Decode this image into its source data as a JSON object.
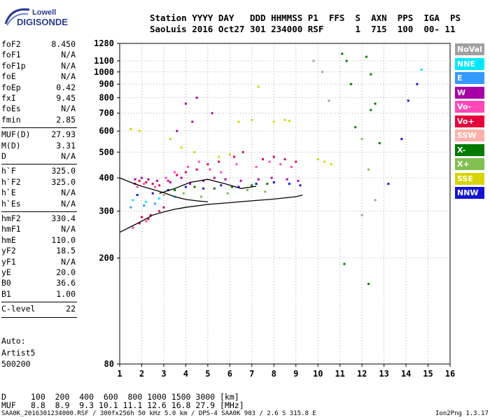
{
  "logo": {
    "line1": "Lowell",
    "line2": "DIGISONDE"
  },
  "header": {
    "line1": "Station YYYY DAY   DDD HHMMSS P1  FFS  S  AXN  PPS  IGA  PS",
    "line2": "SaoLuis 2016 Oct27 301 234000 RSF      1  715  100  00- 11"
  },
  "params": {
    "group1": [
      {
        "name": "foF2",
        "value": "8.450"
      },
      {
        "name": "foF1",
        "value": "N/A"
      },
      {
        "name": "foF1p",
        "value": "N/A"
      },
      {
        "name": "foE",
        "value": "N/A"
      },
      {
        "name": "foEp",
        "value": "0.42"
      },
      {
        "name": "fxI",
        "value": "9.45"
      },
      {
        "name": "foEs",
        "value": "N/A"
      },
      {
        "name": "fmin",
        "value": "2.85"
      }
    ],
    "group2": [
      {
        "name": "MUF(D)",
        "value": "27.93"
      },
      {
        "name": "M(D)",
        "value": "3.31"
      },
      {
        "name": "D",
        "value": "N/A"
      }
    ],
    "group3": [
      {
        "name": "h`F",
        "value": "325.0"
      },
      {
        "name": "h`F2",
        "value": "325.0"
      },
      {
        "name": "h`E",
        "value": "N/A"
      },
      {
        "name": "h`Es",
        "value": "N/A"
      }
    ],
    "group4": [
      {
        "name": "hmF2",
        "value": "330.4"
      },
      {
        "name": "hmF1",
        "value": "N/A"
      },
      {
        "name": "hmE",
        "value": "110.0"
      },
      {
        "name": "yF2",
        "value": "18.5"
      },
      {
        "name": "yF1",
        "value": "N/A"
      },
      {
        "name": "yE",
        "value": "20.0"
      },
      {
        "name": "B0",
        "value": "36.6"
      },
      {
        "name": "B1",
        "value": "1.00"
      }
    ],
    "group5": [
      {
        "name": "C-level",
        "value": "22"
      }
    ]
  },
  "notes": [
    "Auto:",
    "Artist5",
    "500200"
  ],
  "legend": [
    {
      "label": "NoVal",
      "color": "#a0a0a0"
    },
    {
      "label": "NNE",
      "color": "#00e8ff"
    },
    {
      "label": "E",
      "color": "#3399ff"
    },
    {
      "label": "W",
      "color": "#a800a8"
    },
    {
      "label": "Vo-",
      "color": "#ff48b8"
    },
    {
      "label": "Vo+",
      "color": "#e8003c"
    },
    {
      "label": "SSW",
      "color": "#ffb0a8"
    },
    {
      "label": "X-",
      "color": "#007a00"
    },
    {
      "label": "X+",
      "color": "#80c050"
    },
    {
      "label": "SSE",
      "color": "#d8d400"
    },
    {
      "label": "NNW",
      "color": "#1414d0"
    }
  ],
  "bottom": {
    "d_label": "D",
    "d_values": "100  200  400  600  800 1000 1500 3000 [km]",
    "muf_label": "MUF",
    "muf_values": "8.8  8.9  9.3 10.1 11.1 12.6 16.8 27.9 [MHz]"
  },
  "footer": {
    "left": "SAA0K_2016301234000.RSF / 300fx256h 50 kHz 5.0 km / DPS-4 SAA0K 903 / 2.6 S 315.8 E",
    "right": "Ion2Png 1.3.17"
  },
  "chart_data": {
    "type": "scatter",
    "xlim": [
      1,
      16
    ],
    "ylim": [
      80,
      1280
    ],
    "y_scale": "log",
    "x_ticks": [
      1,
      2,
      3,
      4,
      5,
      6,
      7,
      8,
      9,
      10,
      11,
      12,
      13,
      14,
      15,
      16
    ],
    "y_ticks": [
      80,
      200,
      300,
      400,
      500,
      600,
      700,
      800,
      900,
      1000,
      1100,
      1280
    ],
    "grid": true,
    "legend_position": "right",
    "series": [
      {
        "name": "Vo+",
        "points": [
          [
            1.7,
            380
          ],
          [
            1.9,
            390
          ],
          [
            2.2,
            385
          ],
          [
            2.5,
            380
          ],
          [
            2.8,
            375
          ],
          [
            3.2,
            390
          ],
          [
            3.6,
            410
          ],
          [
            4.0,
            420
          ],
          [
            4.5,
            430
          ],
          [
            5.0,
            450
          ],
          [
            5.5,
            460
          ],
          [
            6.2,
            480
          ],
          [
            6.6,
            500
          ],
          [
            7.5,
            470
          ],
          [
            8.0,
            480
          ],
          [
            8.5,
            470
          ],
          [
            9.0,
            460
          ],
          [
            2.0,
            285
          ],
          [
            2.4,
            290
          ],
          [
            2.8,
            300
          ],
          [
            1.9,
            270
          ],
          [
            2.3,
            280
          ],
          [
            3.0,
            310
          ]
        ]
      },
      {
        "name": "Vo-",
        "points": [
          [
            1.8,
            370
          ],
          [
            2.1,
            380
          ],
          [
            2.6,
            370
          ],
          [
            3.1,
            400
          ],
          [
            3.5,
            420
          ],
          [
            4.1,
            440
          ],
          [
            4.6,
            460
          ],
          [
            5.1,
            430
          ],
          [
            5.6,
            420
          ],
          [
            6.3,
            450
          ],
          [
            7.2,
            440
          ],
          [
            7.8,
            460
          ],
          [
            8.3,
            450
          ],
          [
            8.8,
            440
          ],
          [
            1.6,
            260
          ],
          [
            2.2,
            275
          ]
        ]
      },
      {
        "name": "W",
        "points": [
          [
            1.7,
            395
          ],
          [
            2.0,
            400
          ],
          [
            2.3,
            395
          ],
          [
            2.7,
            390
          ],
          [
            3.3,
            385
          ],
          [
            3.8,
            400
          ],
          [
            4.2,
            380
          ],
          [
            4.8,
            390
          ],
          [
            5.3,
            400
          ],
          [
            5.8,
            395
          ],
          [
            6.5,
            390
          ],
          [
            7.3,
            395
          ],
          [
            7.9,
            400
          ],
          [
            8.6,
            395
          ],
          [
            9.1,
            390
          ],
          [
            3.6,
            600
          ],
          [
            4.3,
            650
          ],
          [
            5.2,
            700
          ],
          [
            4.0,
            760
          ],
          [
            4.5,
            800
          ]
        ]
      },
      {
        "name": "NNW",
        "points": [
          [
            1.8,
            345
          ],
          [
            2.5,
            350
          ],
          [
            3.2,
            360
          ],
          [
            4.0,
            370
          ],
          [
            4.8,
            365
          ],
          [
            5.6,
            375
          ],
          [
            6.4,
            370
          ],
          [
            7.2,
            380
          ],
          [
            8.0,
            385
          ],
          [
            8.7,
            380
          ],
          [
            9.2,
            375
          ],
          [
            13.2,
            380
          ],
          [
            13.8,
            560
          ],
          [
            14.1,
            780
          ],
          [
            14.5,
            900
          ]
        ]
      },
      {
        "name": "X-",
        "points": [
          [
            3.5,
            360
          ],
          [
            4.4,
            370
          ],
          [
            5.3,
            365
          ],
          [
            6.1,
            370
          ],
          [
            7.0,
            375
          ],
          [
            7.7,
            380
          ],
          [
            11.1,
            1170
          ],
          [
            11.3,
            1100
          ],
          [
            11.5,
            900
          ],
          [
            11.7,
            620
          ],
          [
            12.2,
            1140
          ],
          [
            12.4,
            980
          ],
          [
            12.6,
            760
          ],
          [
            12.8,
            540
          ],
          [
            11.2,
            190
          ],
          [
            12.3,
            160
          ],
          [
            12.4,
            720
          ]
        ]
      },
      {
        "name": "X+",
        "points": [
          [
            3.0,
            345
          ],
          [
            3.9,
            350
          ],
          [
            4.7,
            340
          ],
          [
            5.9,
            350
          ],
          [
            6.8,
            360
          ],
          [
            7.6,
            355
          ],
          [
            12.0,
            560
          ],
          [
            12.3,
            430
          ]
        ]
      },
      {
        "name": "SSE",
        "points": [
          [
            1.5,
            610
          ],
          [
            1.9,
            600
          ],
          [
            3.3,
            560
          ],
          [
            3.8,
            520
          ],
          [
            4.4,
            500
          ],
          [
            5.5,
            480
          ],
          [
            6.0,
            490
          ],
          [
            6.4,
            650
          ],
          [
            7.0,
            660
          ],
          [
            8.0,
            650
          ],
          [
            8.5,
            660
          ],
          [
            8.7,
            655
          ],
          [
            10.0,
            470
          ],
          [
            10.3,
            460
          ],
          [
            10.6,
            450
          ],
          [
            7.3,
            880
          ]
        ]
      },
      {
        "name": "NNE",
        "points": [
          [
            1.6,
            330
          ],
          [
            2.2,
            325
          ],
          [
            2.8,
            335
          ],
          [
            3.5,
            340
          ],
          [
            14.7,
            1020
          ]
        ]
      },
      {
        "name": "E",
        "points": [
          [
            1.5,
            310
          ],
          [
            2.1,
            315
          ],
          [
            2.6,
            320
          ]
        ]
      },
      {
        "name": "NoVal",
        "points": [
          [
            9.8,
            1100
          ],
          [
            10.2,
            1000
          ],
          [
            10.5,
            780
          ],
          [
            12.0,
            290
          ],
          [
            12.6,
            330
          ]
        ]
      }
    ],
    "curves": [
      {
        "points": [
          [
            1.0,
            250
          ],
          [
            1.5,
            262
          ],
          [
            2.0,
            275
          ],
          [
            2.5,
            290
          ],
          [
            3.0,
            298
          ],
          [
            3.5,
            305
          ],
          [
            4.0,
            310
          ],
          [
            5.0,
            318
          ],
          [
            6.0,
            323
          ],
          [
            7.0,
            328
          ],
          [
            8.0,
            333
          ],
          [
            9.0,
            340
          ],
          [
            9.3,
            345
          ]
        ]
      },
      {
        "points": [
          [
            1.0,
            400
          ],
          [
            1.5,
            385
          ],
          [
            2.0,
            372
          ],
          [
            2.5,
            362
          ],
          [
            3.0,
            352
          ],
          [
            3.5,
            340
          ],
          [
            4.0,
            332
          ],
          [
            4.5,
            328
          ],
          [
            5.0,
            325
          ]
        ]
      },
      {
        "points": [
          [
            2.8,
            350
          ],
          [
            3.5,
            365
          ],
          [
            4.2,
            385
          ],
          [
            5.0,
            395
          ],
          [
            5.8,
            380
          ],
          [
            6.5,
            365
          ],
          [
            7.2,
            372
          ]
        ]
      }
    ]
  }
}
